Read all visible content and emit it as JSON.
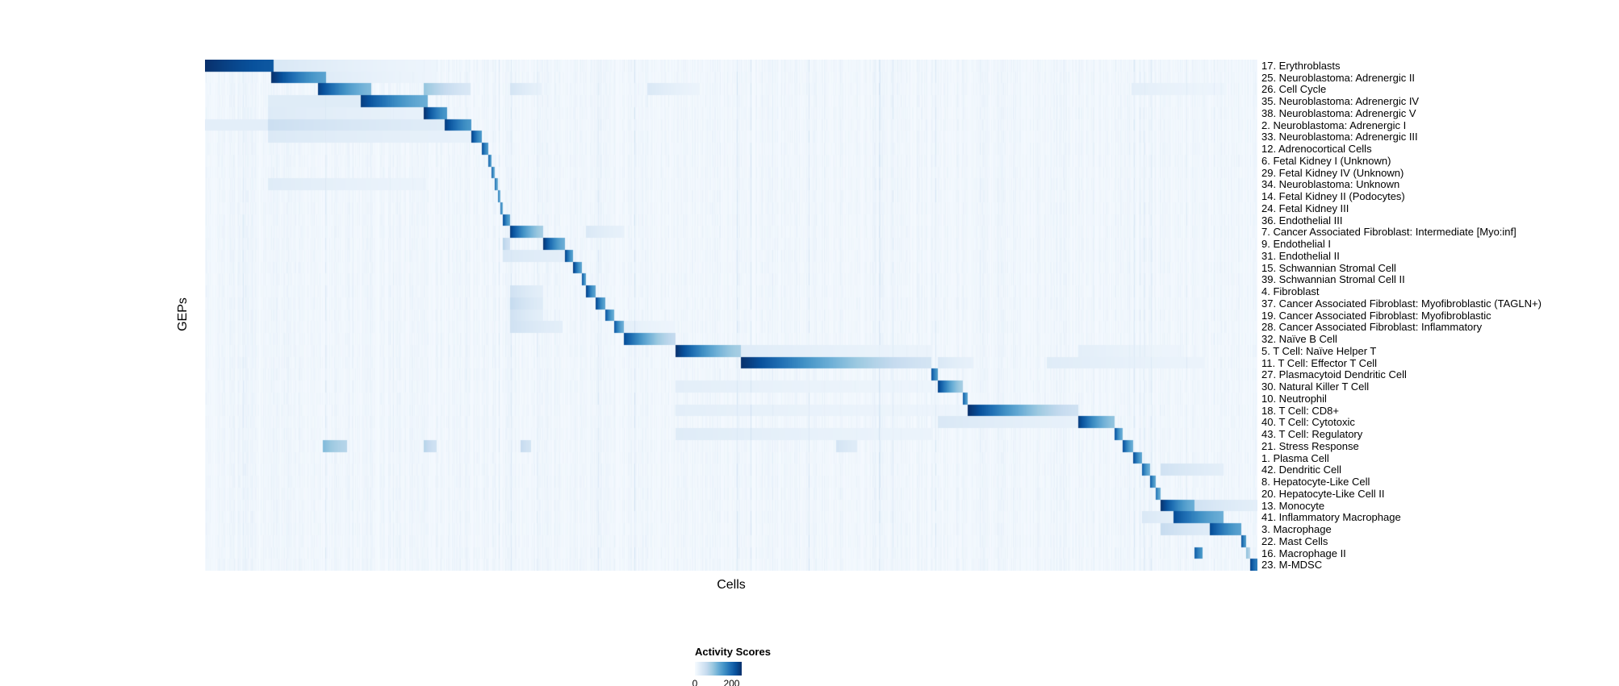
{
  "figure": {
    "background_color": "#ffffff",
    "text_color": "#000000"
  },
  "chart_data": {
    "type": "heatmap",
    "title": "",
    "xlabel": "Cells",
    "ylabel": "GEPs",
    "grid": false,
    "legend_position": "bottom-center",
    "value_range": [
      0,
      255
    ],
    "legend": {
      "title": "Activity Scores",
      "ticks": [
        {
          "label": "0",
          "pos": 0.0
        },
        {
          "label": "200",
          "pos": 0.784
        }
      ]
    },
    "colormap": {
      "name": "Blues",
      "stops": [
        [
          0.0,
          "#f7fbff"
        ],
        [
          0.125,
          "#deebf7"
        ],
        [
          0.25,
          "#c6dbef"
        ],
        [
          0.375,
          "#9ecae1"
        ],
        [
          0.5,
          "#6baed6"
        ],
        [
          0.625,
          "#4292c6"
        ],
        [
          0.75,
          "#2171b5"
        ],
        [
          0.875,
          "#08519c"
        ],
        [
          1.0,
          "#08306b"
        ]
      ]
    },
    "noise": {
      "seed": 7,
      "column_base": 0.05,
      "spike_prob": 0.035,
      "spike_max": 0.1
    },
    "rows": [
      {
        "label": "17. Erythroblasts",
        "segments": [
          [
            0.0,
            0.065,
            1.0,
            0.85
          ],
          [
            0.065,
            0.22,
            0.15,
            0.05
          ]
        ]
      },
      {
        "label": "25. Neuroblastoma: Adrenergic II",
        "segments": [
          [
            0.063,
            0.115,
            1.0,
            0.55
          ],
          [
            0.115,
            0.22,
            0.12,
            0.05
          ]
        ]
      },
      {
        "label": "26. Cell Cycle",
        "segments": [
          [
            0.107,
            0.158,
            0.95,
            0.45
          ],
          [
            0.208,
            0.252,
            0.4,
            0.15
          ],
          [
            0.29,
            0.32,
            0.18,
            0.08
          ],
          [
            0.42,
            0.47,
            0.15,
            0.06
          ],
          [
            0.88,
            0.97,
            0.1,
            0.05
          ]
        ]
      },
      {
        "label": "35. Neuroblastoma: Adrenergic IV",
        "segments": [
          [
            0.148,
            0.212,
            0.95,
            0.5
          ],
          [
            0.06,
            0.148,
            0.12,
            0.12
          ]
        ]
      },
      {
        "label": "38. Neuroblastoma: Adrenergic V",
        "segments": [
          [
            0.208,
            0.23,
            1.0,
            0.6
          ],
          [
            0.06,
            0.208,
            0.13,
            0.08
          ]
        ]
      },
      {
        "label": "2. Neuroblastoma: Adrenergic I",
        "segments": [
          [
            0.228,
            0.253,
            0.95,
            0.6
          ],
          [
            0.06,
            0.228,
            0.22,
            0.12
          ],
          [
            0.0,
            0.06,
            0.1,
            0.1
          ]
        ]
      },
      {
        "label": "33. Neuroblastoma: Adrenergic III",
        "segments": [
          [
            0.253,
            0.263,
            0.95,
            0.6
          ],
          [
            0.06,
            0.253,
            0.14,
            0.08
          ]
        ]
      },
      {
        "label": "12. Adrenocortical Cells",
        "segments": [
          [
            0.263,
            0.269,
            0.9,
            0.6
          ]
        ]
      },
      {
        "label": "6. Fetal Kidney I (Unknown)",
        "segments": [
          [
            0.269,
            0.2725,
            0.85,
            0.55
          ]
        ]
      },
      {
        "label": "29. Fetal Kidney IV (Unknown)",
        "segments": [
          [
            0.2725,
            0.2755,
            0.8,
            0.5
          ]
        ]
      },
      {
        "label": "34. Neuroblastoma: Unknown",
        "segments": [
          [
            0.2755,
            0.278,
            0.8,
            0.5
          ],
          [
            0.06,
            0.21,
            0.12,
            0.06
          ]
        ]
      },
      {
        "label": "14. Fetal Kidney II (Podocytes)",
        "segments": [
          [
            0.278,
            0.2805,
            0.8,
            0.5
          ]
        ]
      },
      {
        "label": "24. Fetal Kidney III",
        "segments": [
          [
            0.2805,
            0.283,
            0.8,
            0.5
          ]
        ]
      },
      {
        "label": "36. Endothelial III",
        "segments": [
          [
            0.283,
            0.29,
            0.9,
            0.55
          ]
        ]
      },
      {
        "label": "7. Cancer Associated Fibroblast: Intermediate [Myo:inf]",
        "segments": [
          [
            0.29,
            0.321,
            0.95,
            0.35
          ],
          [
            0.362,
            0.398,
            0.15,
            0.08
          ]
        ]
      },
      {
        "label": "9. Endothelial I",
        "segments": [
          [
            0.321,
            0.342,
            1.0,
            0.5
          ],
          [
            0.283,
            0.29,
            0.3,
            0.2
          ]
        ]
      },
      {
        "label": "31. Endothelial II",
        "segments": [
          [
            0.342,
            0.35,
            0.95,
            0.55
          ],
          [
            0.283,
            0.342,
            0.15,
            0.1
          ]
        ]
      },
      {
        "label": "15. Schwannian Stromal Cell",
        "segments": [
          [
            0.35,
            0.358,
            0.95,
            0.55
          ]
        ]
      },
      {
        "label": "39. Schwannian Stromal Cell II",
        "segments": [
          [
            0.358,
            0.362,
            0.9,
            0.55
          ]
        ]
      },
      {
        "label": "4. Fibroblast",
        "segments": [
          [
            0.362,
            0.371,
            0.95,
            0.55
          ],
          [
            0.29,
            0.321,
            0.2,
            0.1
          ]
        ]
      },
      {
        "label": "37. Cancer Associated Fibroblast: Myofibroblastic (TAGLN+)",
        "segments": [
          [
            0.371,
            0.38,
            0.95,
            0.55
          ],
          [
            0.29,
            0.321,
            0.25,
            0.12
          ]
        ]
      },
      {
        "label": "19. Cancer Associated Fibroblast: Myofibroblastic",
        "segments": [
          [
            0.38,
            0.389,
            0.9,
            0.5
          ],
          [
            0.29,
            0.321,
            0.2,
            0.1
          ]
        ]
      },
      {
        "label": "28. Cancer Associated Fibroblast: Inflammatory",
        "segments": [
          [
            0.389,
            0.398,
            0.85,
            0.5
          ],
          [
            0.29,
            0.34,
            0.2,
            0.1
          ],
          [
            0.398,
            0.447,
            0.1,
            0.05
          ]
        ]
      },
      {
        "label": "32. Naïve B Cell",
        "segments": [
          [
            0.398,
            0.447,
            0.9,
            0.25
          ]
        ]
      },
      {
        "label": "5. T Cell: Naïve Helper T",
        "segments": [
          [
            0.447,
            0.509,
            1.0,
            0.35
          ],
          [
            0.509,
            0.69,
            0.12,
            0.06
          ],
          [
            0.83,
            0.93,
            0.1,
            0.05
          ]
        ]
      },
      {
        "label": "11. T Cell: Effector T Cell",
        "segments": [
          [
            0.509,
            0.69,
            1.0,
            0.18
          ],
          [
            0.696,
            0.73,
            0.15,
            0.08
          ],
          [
            0.8,
            0.95,
            0.12,
            0.06
          ]
        ]
      },
      {
        "label": "27. Plasmacytoid Dendritic Cell",
        "segments": [
          [
            0.69,
            0.696,
            0.9,
            0.6
          ]
        ]
      },
      {
        "label": "30. Natural Killer T Cell",
        "segments": [
          [
            0.696,
            0.72,
            0.95,
            0.35
          ],
          [
            0.447,
            0.69,
            0.1,
            0.05
          ]
        ]
      },
      {
        "label": "10. Neutrophil",
        "segments": [
          [
            0.72,
            0.725,
            0.85,
            0.55
          ]
        ]
      },
      {
        "label": "18. T Cell: CD8+",
        "segments": [
          [
            0.725,
            0.83,
            1.0,
            0.2
          ],
          [
            0.447,
            0.725,
            0.1,
            0.05
          ]
        ]
      },
      {
        "label": "40. T Cell: Cytotoxic",
        "segments": [
          [
            0.83,
            0.864,
            0.95,
            0.4
          ],
          [
            0.696,
            0.83,
            0.15,
            0.08
          ]
        ]
      },
      {
        "label": "43. T Cell: Regulatory",
        "segments": [
          [
            0.864,
            0.872,
            0.9,
            0.5
          ],
          [
            0.447,
            0.69,
            0.12,
            0.06
          ]
        ]
      },
      {
        "label": "21. Stress Response",
        "segments": [
          [
            0.872,
            0.882,
            0.9,
            0.5
          ],
          [
            0.112,
            0.135,
            0.45,
            0.3
          ],
          [
            0.208,
            0.22,
            0.3,
            0.2
          ],
          [
            0.3,
            0.31,
            0.25,
            0.18
          ],
          [
            0.6,
            0.62,
            0.18,
            0.12
          ]
        ]
      },
      {
        "label": "1. Plasma Cell",
        "segments": [
          [
            0.882,
            0.89,
            0.9,
            0.55
          ]
        ]
      },
      {
        "label": "42. Dendritic Cell",
        "segments": [
          [
            0.89,
            0.898,
            0.85,
            0.5
          ],
          [
            0.908,
            0.968,
            0.2,
            0.1
          ]
        ]
      },
      {
        "label": "8. Hepatocyte-Like Cell",
        "segments": [
          [
            0.898,
            0.903,
            0.85,
            0.55
          ]
        ]
      },
      {
        "label": "20. Hepatocyte-Like Cell II",
        "segments": [
          [
            0.903,
            0.908,
            0.8,
            0.5
          ]
        ]
      },
      {
        "label": "13. Monocyte",
        "segments": [
          [
            0.908,
            0.94,
            1.0,
            0.5
          ],
          [
            0.94,
            1.0,
            0.2,
            0.1
          ]
        ]
      },
      {
        "label": "41. Inflammatory Macrophage",
        "segments": [
          [
            0.92,
            0.968,
            0.9,
            0.5
          ],
          [
            0.89,
            0.92,
            0.15,
            0.1
          ]
        ]
      },
      {
        "label": "3. Macrophage",
        "segments": [
          [
            0.955,
            0.985,
            0.9,
            0.55
          ],
          [
            0.908,
            0.955,
            0.25,
            0.12
          ]
        ]
      },
      {
        "label": "22. Mast Cells",
        "segments": [
          [
            0.985,
            0.989,
            0.85,
            0.6
          ]
        ]
      },
      {
        "label": "16. Macrophage II",
        "segments": [
          [
            0.94,
            0.948,
            0.85,
            0.6
          ],
          [
            0.989,
            0.993,
            0.45,
            0.3
          ]
        ]
      },
      {
        "label": "23. M-MDSC",
        "segments": [
          [
            0.993,
            1.0,
            0.95,
            0.7
          ]
        ]
      }
    ]
  }
}
